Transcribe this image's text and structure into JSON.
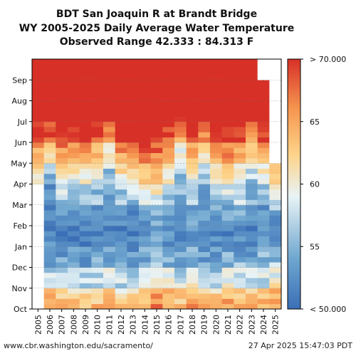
{
  "chart_data": {
    "type": "heatmap",
    "title_lines": [
      "BDT San Joaquin R at Brandt Bridge",
      "WY 2005-2025 Daily Average Water Temperature",
      "Observed Range 42.333 : 84.313 F"
    ],
    "x_categories": [
      "2005",
      "2006",
      "2007",
      "2008",
      "2009",
      "2010",
      "2011",
      "2012",
      "2013",
      "2014",
      "2015",
      "2016",
      "2017",
      "2018",
      "2019",
      "2020",
      "2021",
      "2022",
      "2023",
      "2024",
      "2025"
    ],
    "y_months": [
      "Oct",
      "Nov",
      "Dec",
      "Jan",
      "Feb",
      "Mar",
      "Apr",
      "May",
      "Jun",
      "Jul",
      "Aug",
      "Sep"
    ],
    "value_units": "F",
    "color_range": [
      50,
      70
    ],
    "colorbar_ticks": [
      {
        "value": 70,
        "label": "> 70.000"
      },
      {
        "value": 65,
        "label": "65"
      },
      {
        "value": 60,
        "label": "60"
      },
      {
        "value": 55,
        "label": "55"
      },
      {
        "value": 50,
        "label": "< 50.000"
      }
    ],
    "grid": true,
    "missing_data_color": "#ffffff",
    "colors": [
      "#3b6fb6",
      "#6ea6cf",
      "#e8f3f6",
      "#fdd389",
      "#f69650",
      "#d73027"
    ],
    "approx_monthly_means_by_year": {
      "2005": [
        null,
        null,
        null,
        null,
        null,
        null,
        59,
        63,
        68,
        72,
        75,
        73
      ],
      "2006": [
        66,
        58,
        54,
        52,
        51,
        52,
        54,
        60,
        67,
        73,
        75,
        72
      ],
      "2007": [
        65,
        58,
        54,
        50,
        52,
        55,
        59,
        64,
        70,
        74,
        75,
        73
      ],
      "2008": [
        64,
        58,
        54,
        51,
        52,
        55,
        58,
        63,
        69,
        74,
        75,
        72
      ],
      "2009": [
        63,
        57,
        53,
        51,
        52,
        55,
        59,
        64,
        70,
        74,
        75,
        72
      ],
      "2010": [
        64,
        57,
        54,
        51,
        52,
        55,
        57,
        62,
        68,
        73,
        75,
        72
      ],
      "2011": [
        67,
        59,
        55,
        52,
        52,
        54,
        55,
        58,
        64,
        72,
        74,
        73
      ],
      "2012": [
        63,
        57,
        53,
        51,
        52,
        55,
        59,
        64,
        70,
        74,
        75,
        72
      ],
      "2013": [
        64,
        58,
        54,
        51,
        52,
        55,
        60,
        66,
        71,
        75,
        76,
        73
      ],
      "2014": [
        65,
        59,
        55,
        52,
        53,
        57,
        61,
        66,
        71,
        75,
        76,
        73
      ],
      "2015": [
        67,
        61,
        56,
        53,
        54,
        58,
        62,
        66,
        71,
        75,
        76,
        74
      ],
      "2016": [
        66,
        59,
        55,
        52,
        53,
        56,
        59,
        63,
        68,
        73,
        75,
        72
      ],
      "2017": [
        64,
        58,
        54,
        52,
        52,
        54,
        55,
        58,
        63,
        71,
        74,
        73
      ],
      "2018": [
        66,
        59,
        55,
        52,
        53,
        55,
        58,
        63,
        69,
        74,
        75,
        72
      ],
      "2019": [
        64,
        58,
        54,
        51,
        52,
        54,
        55,
        59,
        65,
        72,
        75,
        73
      ],
      "2020": [
        64,
        58,
        54,
        52,
        53,
        56,
        59,
        64,
        70,
        74,
        75,
        72
      ],
      "2021": [
        66,
        60,
        55,
        52,
        53,
        56,
        60,
        65,
        70,
        74,
        76,
        73
      ],
      "2022": [
        65,
        59,
        55,
        52,
        53,
        56,
        59,
        63,
        68,
        73,
        75,
        73
      ],
      "2023": [
        64,
        58,
        54,
        51,
        52,
        54,
        56,
        60,
        66,
        72,
        75,
        73
      ],
      "2024": [
        65,
        58,
        55,
        52,
        52,
        55,
        58,
        62,
        68,
        73,
        75,
        null
      ],
      "2025": [
        66,
        60,
        56,
        52,
        53,
        57,
        62,
        null,
        null,
        null,
        null,
        null
      ]
    }
  },
  "footer": {
    "left": "www.cbr.washington.edu/sacramento/",
    "right": "27 Apr 2025 15:47:03 PDT"
  }
}
